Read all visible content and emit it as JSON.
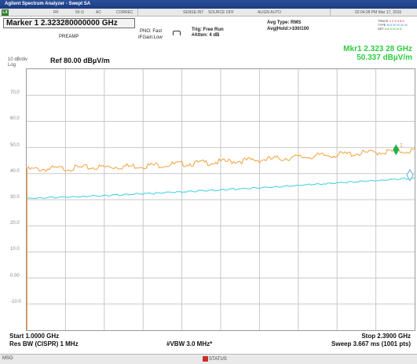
{
  "window": {
    "title": "Agilent Spectrum Analyzer - Swept SA"
  },
  "status_bar": {
    "input": "RF",
    "impedance": "50 Ω",
    "coupling": "AC",
    "correction": "CORREC",
    "sense": "SENSE:INT",
    "source": "SOURCE OFF",
    "align": "ALIGN AUTO",
    "datetime": "02:04:28 PM Mar 17, 2016"
  },
  "marker": {
    "label": "Marker 1  2.323280000000 GHz"
  },
  "settings": {
    "preamp": "PREAMP",
    "pno": "PNO: Fast",
    "if_gain": "IFGain:Low",
    "trig": "Trig: Free Run",
    "atten": "#Atten: 4 dB",
    "avg_type": "Avg Type: RMS",
    "avg_hold": "Avg|Hold:>100/100"
  },
  "trace_legend": {
    "trace": "TRACE",
    "trace_nums": "1 2 3 4 5 6",
    "type_label": "TYPE",
    "type_vals": "M A W W W W",
    "det_label": "DET",
    "det_vals": "A A N N N N"
  },
  "marker_readout": {
    "freq": "Mkr1 2.323 28 GHz",
    "level": "50.337 dBµV/m"
  },
  "scale": {
    "div": "10 dB/div",
    "type": "Log",
    "ref": "Ref 80.00 dBµV/m"
  },
  "chart_data": {
    "type": "line",
    "x_start_ghz": 1.0,
    "x_stop_ghz": 2.39,
    "ylim": [
      -20,
      80
    ],
    "y_ticks": [
      "70.0",
      "60.0",
      "50.0",
      "40.0",
      "30.0",
      "20.0",
      "10.0",
      "0.00",
      "-10.0"
    ],
    "series": [
      {
        "color": "#f2a23c",
        "x": [
          1.0,
          1.14,
          1.28,
          1.42,
          1.56,
          1.7,
          1.84,
          1.98,
          2.12,
          2.26,
          2.39
        ],
        "y": [
          41.5,
          42.0,
          42.5,
          43.0,
          43.7,
          44.5,
          45.3,
          46.3,
          47.3,
          48.2,
          48.8
        ]
      },
      {
        "color": "#3ed0e0",
        "x": [
          1.0,
          1.14,
          1.28,
          1.42,
          1.56,
          1.7,
          1.84,
          1.98,
          2.12,
          2.26,
          2.39
        ],
        "y": [
          30.5,
          31.0,
          31.6,
          32.3,
          33.0,
          33.8,
          34.6,
          35.5,
          36.5,
          37.4,
          38.2
        ]
      }
    ],
    "marker": {
      "x": 2.32328,
      "y": 50.337,
      "label": "1"
    },
    "delta_marker": {
      "x": 2.39,
      "y": 38.2
    }
  },
  "bottom_info": {
    "start": "Start 1.0000 GHz",
    "stop": "Stop 2.3900 GHz",
    "rbw": "Res BW (CISPR)  1 MHz",
    "vbw": "#VBW 3.0 MHz*",
    "sweep": "Sweep  3.667 ms (1001 pts)"
  },
  "footer": {
    "msg": "MSG",
    "status": "STATUS"
  }
}
